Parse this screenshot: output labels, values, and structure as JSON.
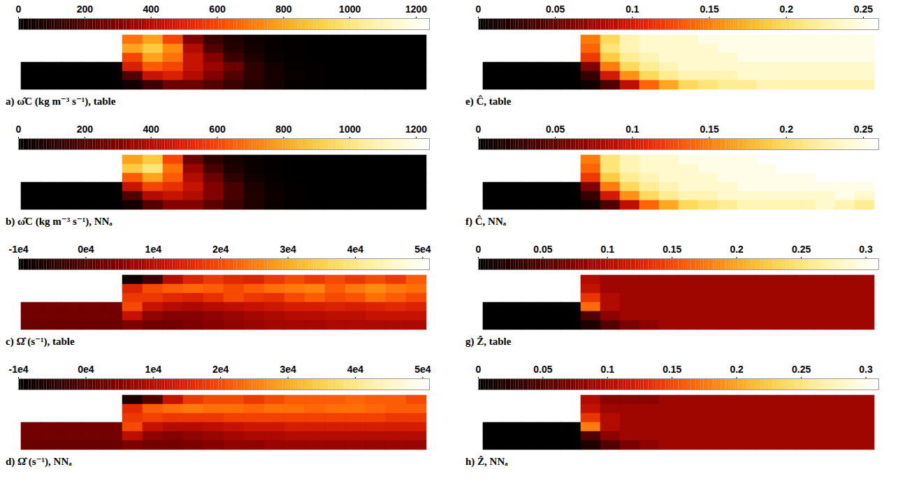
{
  "chart_data": [
    {
      "type": "heatmap",
      "title": "a) ω̂C (kg m⁻³ s⁻¹), table",
      "tick_labels": false,
      "colorbar_range": [
        0,
        1240
      ],
      "colorbar_ticks": [
        0,
        200,
        400,
        600,
        800,
        1000,
        1200
      ],
      "cells": [
        [
          null,
          null,
          null,
          null,
          null,
          700,
          800,
          600,
          300,
          150,
          80,
          40,
          20,
          10,
          0,
          0,
          0,
          0,
          0,
          0
        ],
        [
          null,
          null,
          null,
          null,
          null,
          800,
          900,
          750,
          400,
          200,
          100,
          50,
          20,
          10,
          0,
          0,
          0,
          0,
          0,
          0
        ],
        [
          null,
          null,
          null,
          null,
          null,
          600,
          800,
          700,
          450,
          300,
          150,
          80,
          30,
          10,
          0,
          0,
          0,
          0,
          0,
          0
        ],
        [
          0,
          0,
          0,
          0,
          0,
          500,
          650,
          600,
          450,
          350,
          250,
          120,
          50,
          20,
          10,
          0,
          0,
          0,
          0,
          0
        ],
        [
          0,
          0,
          0,
          0,
          0,
          200,
          450,
          500,
          400,
          300,
          200,
          120,
          60,
          30,
          10,
          0,
          0,
          0,
          0,
          0
        ],
        [
          0,
          0,
          0,
          0,
          0,
          50,
          150,
          250,
          250,
          200,
          150,
          100,
          50,
          20,
          10,
          0,
          0,
          0,
          0,
          0
        ]
      ]
    },
    {
      "type": "heatmap",
      "title": "b) ω̂C (kg m⁻³ s⁻¹), NNₐ",
      "tick_labels": false,
      "colorbar_range": [
        0,
        1240
      ],
      "colorbar_ticks": [
        0,
        200,
        400,
        600,
        800,
        1000,
        1200
      ],
      "cells": [
        [
          null,
          null,
          null,
          null,
          null,
          800,
          900,
          600,
          250,
          120,
          60,
          30,
          10,
          0,
          0,
          0,
          0,
          0,
          0,
          0
        ],
        [
          null,
          null,
          null,
          null,
          null,
          900,
          1000,
          700,
          350,
          180,
          80,
          30,
          10,
          0,
          0,
          0,
          0,
          0,
          0,
          0
        ],
        [
          null,
          null,
          null,
          null,
          null,
          650,
          800,
          650,
          400,
          250,
          120,
          50,
          20,
          0,
          0,
          0,
          0,
          0,
          0,
          0
        ],
        [
          0,
          0,
          0,
          0,
          0,
          450,
          600,
          550,
          450,
          300,
          180,
          80,
          30,
          10,
          0,
          0,
          0,
          0,
          0,
          0
        ],
        [
          0,
          0,
          0,
          0,
          0,
          200,
          400,
          450,
          400,
          300,
          180,
          90,
          40,
          10,
          0,
          0,
          0,
          0,
          0,
          0
        ],
        [
          0,
          0,
          0,
          0,
          0,
          50,
          200,
          300,
          300,
          220,
          150,
          80,
          30,
          10,
          0,
          0,
          0,
          0,
          0,
          0
        ]
      ]
    },
    {
      "type": "heatmap",
      "title": "c) Ω̂ (s⁻¹), table",
      "tick_labels": false,
      "colorbar_range": [
        -10000,
        51000
      ],
      "colorbar_ticks": [
        {
          "value": -10000,
          "label": "-1e4"
        },
        {
          "value": 0,
          "label": "0e4"
        },
        {
          "value": 10000,
          "label": "1e4"
        },
        {
          "value": 20000,
          "label": "2e4"
        },
        {
          "value": 30000,
          "label": "3e4"
        },
        {
          "value": 40000,
          "label": "4e4"
        },
        {
          "value": 50000,
          "label": "5e4"
        }
      ],
      "cells": [
        [
          null,
          null,
          null,
          null,
          null,
          -8000,
          -2000,
          10000,
          15000,
          18000,
          16000,
          15000,
          18000,
          20000,
          18000,
          20000,
          18000,
          20000,
          18000,
          22000
        ],
        [
          null,
          null,
          null,
          null,
          null,
          15000,
          20000,
          22000,
          23000,
          22000,
          20000,
          22000,
          24000,
          25000,
          26000,
          22000,
          25000,
          27000,
          25000,
          24000
        ],
        [
          null,
          null,
          null,
          null,
          null,
          18000,
          18000,
          16000,
          15000,
          17000,
          20000,
          18000,
          17000,
          20000,
          22000,
          20000,
          21000,
          24000,
          22000,
          20000
        ],
        [
          3000,
          3000,
          3000,
          3000,
          3000,
          20000,
          12000,
          10000,
          9000,
          10000,
          11000,
          12000,
          13000,
          14000,
          14000,
          15000,
          14000,
          15000,
          16000,
          15000
        ],
        [
          3000,
          3000,
          3000,
          3000,
          3000,
          12000,
          6000,
          5000,
          5000,
          6000,
          7000,
          8000,
          9000,
          10000,
          10000,
          11000,
          11000,
          12000,
          12000,
          12000
        ],
        [
          2000,
          2000,
          2000,
          2000,
          2000,
          4000,
          3000,
          3000,
          4000,
          5000,
          6000,
          7000,
          8000,
          8000,
          8000,
          9000,
          9000,
          9000,
          9000,
          9000
        ]
      ]
    },
    {
      "type": "heatmap",
      "title": "d) Ω̂ (s⁻¹), NNₐ",
      "tick_labels": false,
      "colorbar_range": [
        -10000,
        51000
      ],
      "colorbar_ticks": [
        {
          "value": -10000,
          "label": "-1e4"
        },
        {
          "value": 0,
          "label": "0e4"
        },
        {
          "value": 10000,
          "label": "1e4"
        },
        {
          "value": 20000,
          "label": "2e4"
        },
        {
          "value": 30000,
          "label": "3e4"
        },
        {
          "value": 40000,
          "label": "4e4"
        },
        {
          "value": 50000,
          "label": "5e4"
        }
      ],
      "cells": [
        [
          null,
          null,
          null,
          null,
          null,
          -6000,
          0,
          12000,
          18000,
          20000,
          20000,
          18000,
          20000,
          22000,
          22000,
          22000,
          23000,
          22000,
          22000,
          20000
        ],
        [
          null,
          null,
          null,
          null,
          null,
          16000,
          22000,
          24000,
          25000,
          24000,
          24000,
          23000,
          24000,
          24000,
          23000,
          24000,
          24000,
          23000,
          22000,
          22000
        ],
        [
          null,
          null,
          null,
          null,
          null,
          18000,
          19000,
          18000,
          18000,
          18000,
          19000,
          19000,
          19000,
          19000,
          19000,
          19000,
          19000,
          19000,
          18000,
          18000
        ],
        [
          3000,
          3000,
          3000,
          3000,
          3000,
          20000,
          12000,
          10000,
          10000,
          11000,
          12000,
          13000,
          13000,
          14000,
          14000,
          14000,
          14000,
          14000,
          14000,
          14000
        ],
        [
          3000,
          3000,
          3000,
          3000,
          3000,
          11000,
          6000,
          5000,
          6000,
          7000,
          8000,
          9000,
          9000,
          10000,
          10000,
          10000,
          10000,
          10000,
          10000,
          10000
        ],
        [
          2000,
          2000,
          2000,
          2000,
          2000,
          4000,
          3000,
          3000,
          4000,
          5000,
          6000,
          6000,
          7000,
          7000,
          7000,
          7000,
          7000,
          7000,
          7000,
          7000
        ]
      ]
    },
    {
      "type": "heatmap",
      "title": "e) Ĉ, table",
      "tick_labels": false,
      "colorbar_range": [
        0,
        0.26
      ],
      "colorbar_ticks": [
        0,
        0.05,
        0.1,
        0.15,
        0.2,
        0.25
      ],
      "cells": [
        [
          null,
          null,
          null,
          null,
          null,
          0.15,
          0.2,
          0.23,
          0.24,
          0.24,
          0.24,
          0.25,
          0.25,
          0.25,
          0.25,
          0.25,
          0.25,
          0.25,
          0.25,
          0.25
        ],
        [
          null,
          null,
          null,
          null,
          null,
          0.14,
          0.21,
          0.23,
          0.24,
          0.24,
          0.24,
          0.24,
          0.25,
          0.25,
          0.25,
          0.25,
          0.25,
          0.25,
          0.25,
          0.25
        ],
        [
          null,
          null,
          null,
          null,
          null,
          0.12,
          0.19,
          0.22,
          0.23,
          0.24,
          0.24,
          0.24,
          0.24,
          0.25,
          0.25,
          0.25,
          0.25,
          0.25,
          0.25,
          0.25
        ],
        [
          0,
          0,
          0,
          0,
          0,
          0.06,
          0.15,
          0.2,
          0.22,
          0.23,
          0.24,
          0.24,
          0.24,
          0.24,
          0.24,
          0.24,
          0.24,
          0.24,
          0.24,
          0.24
        ],
        [
          0,
          0,
          0,
          0,
          0,
          0.03,
          0.1,
          0.16,
          0.2,
          0.22,
          0.23,
          0.23,
          0.23,
          0.24,
          0.24,
          0.24,
          0.24,
          0.24,
          0.24,
          0.24
        ],
        [
          0,
          0,
          0,
          0,
          0,
          0.01,
          0.04,
          0.09,
          0.14,
          0.17,
          0.2,
          0.21,
          0.22,
          0.22,
          0.23,
          0.23,
          0.23,
          0.23,
          0.23,
          0.23
        ]
      ]
    },
    {
      "type": "heatmap",
      "title": "f) Ĉ, NNₐ",
      "tick_labels": false,
      "colorbar_range": [
        0,
        0.26
      ],
      "colorbar_ticks": [
        0,
        0.05,
        0.1,
        0.15,
        0.2,
        0.25
      ],
      "cells": [
        [
          null,
          null,
          null,
          null,
          null,
          0.15,
          0.21,
          0.23,
          0.24,
          0.24,
          0.25,
          0.25,
          0.25,
          0.25,
          0.26,
          0.26,
          0.26,
          0.26,
          0.26,
          0.26
        ],
        [
          null,
          null,
          null,
          null,
          null,
          0.14,
          0.21,
          0.23,
          0.24,
          0.24,
          0.24,
          0.25,
          0.25,
          0.25,
          0.25,
          0.26,
          0.26,
          0.26,
          0.26,
          0.26
        ],
        [
          null,
          null,
          null,
          null,
          null,
          0.12,
          0.19,
          0.22,
          0.23,
          0.24,
          0.24,
          0.24,
          0.25,
          0.25,
          0.25,
          0.25,
          0.25,
          0.26,
          0.26,
          0.26
        ],
        [
          0,
          0,
          0,
          0,
          0,
          0.06,
          0.15,
          0.2,
          0.22,
          0.23,
          0.24,
          0.24,
          0.24,
          0.25,
          0.25,
          0.25,
          0.25,
          0.25,
          0.25,
          0.25
        ],
        [
          0,
          0,
          0,
          0,
          0,
          0.03,
          0.1,
          0.16,
          0.2,
          0.22,
          0.23,
          0.23,
          0.24,
          0.24,
          0.24,
          0.24,
          0.24,
          0.24,
          0.25,
          0.24
        ],
        [
          0,
          0,
          0,
          0,
          0,
          0.01,
          0.04,
          0.09,
          0.14,
          0.17,
          0.2,
          0.21,
          0.22,
          0.23,
          0.23,
          0.23,
          0.23,
          0.24,
          0.23,
          0.22
        ]
      ]
    },
    {
      "type": "heatmap",
      "title": "g) Ẑ, table",
      "tick_labels": false,
      "colorbar_range": [
        0,
        0.31
      ],
      "colorbar_ticks": [
        0,
        0.05,
        0.1,
        0.15,
        0.2,
        0.25,
        0.3
      ],
      "cells": [
        [
          null,
          null,
          null,
          null,
          null,
          0.1,
          0.09,
          0.09,
          0.09,
          0.09,
          0.09,
          0.09,
          0.09,
          0.09,
          0.09,
          0.09,
          0.09,
          0.09,
          0.09,
          0.09
        ],
        [
          null,
          null,
          null,
          null,
          null,
          0.11,
          0.09,
          0.09,
          0.09,
          0.09,
          0.09,
          0.09,
          0.09,
          0.09,
          0.09,
          0.09,
          0.09,
          0.09,
          0.09,
          0.09
        ],
        [
          null,
          null,
          null,
          null,
          null,
          0.14,
          0.1,
          0.09,
          0.09,
          0.09,
          0.09,
          0.09,
          0.09,
          0.09,
          0.09,
          0.09,
          0.09,
          0.09,
          0.09,
          0.09
        ],
        [
          0,
          0,
          0,
          0,
          0,
          0.17,
          0.1,
          0.09,
          0.09,
          0.09,
          0.09,
          0.09,
          0.09,
          0.09,
          0.09,
          0.09,
          0.09,
          0.09,
          0.09,
          0.09
        ],
        [
          0,
          0,
          0,
          0,
          0,
          0.05,
          0.08,
          0.09,
          0.09,
          0.09,
          0.09,
          0.09,
          0.09,
          0.09,
          0.09,
          0.09,
          0.09,
          0.09,
          0.09,
          0.09
        ],
        [
          0,
          0,
          0,
          0,
          0,
          0.02,
          0.05,
          0.07,
          0.08,
          0.09,
          0.09,
          0.09,
          0.09,
          0.09,
          0.09,
          0.09,
          0.09,
          0.09,
          0.09,
          0.09
        ]
      ]
    },
    {
      "type": "heatmap",
      "title": "h) Ẑ, NNₐ",
      "tick_labels": false,
      "colorbar_range": [
        0,
        0.31
      ],
      "colorbar_ticks": [
        0,
        0.05,
        0.1,
        0.15,
        0.2,
        0.25,
        0.3
      ],
      "cells": [
        [
          null,
          null,
          null,
          null,
          null,
          0.1,
          0.08,
          0.08,
          0.08,
          0.09,
          0.09,
          0.09,
          0.09,
          0.09,
          0.09,
          0.09,
          0.09,
          0.09,
          0.09,
          0.09
        ],
        [
          null,
          null,
          null,
          null,
          null,
          0.11,
          0.09,
          0.09,
          0.09,
          0.09,
          0.09,
          0.09,
          0.09,
          0.09,
          0.09,
          0.09,
          0.09,
          0.09,
          0.09,
          0.09
        ],
        [
          null,
          null,
          null,
          null,
          null,
          0.14,
          0.1,
          0.09,
          0.09,
          0.09,
          0.09,
          0.09,
          0.09,
          0.09,
          0.09,
          0.09,
          0.09,
          0.09,
          0.09,
          0.09
        ],
        [
          0,
          0,
          0,
          0,
          0,
          0.18,
          0.1,
          0.09,
          0.09,
          0.09,
          0.09,
          0.09,
          0.09,
          0.09,
          0.09,
          0.09,
          0.09,
          0.09,
          0.09,
          0.09
        ],
        [
          0,
          0,
          0,
          0,
          0,
          0.05,
          0.08,
          0.09,
          0.09,
          0.09,
          0.09,
          0.09,
          0.09,
          0.09,
          0.09,
          0.09,
          0.09,
          0.09,
          0.09,
          0.09
        ],
        [
          0,
          0,
          0,
          0,
          0,
          0.02,
          0.05,
          0.07,
          0.08,
          0.09,
          0.09,
          0.09,
          0.09,
          0.09,
          0.09,
          0.09,
          0.09,
          0.09,
          0.09,
          0.09
        ]
      ]
    }
  ]
}
